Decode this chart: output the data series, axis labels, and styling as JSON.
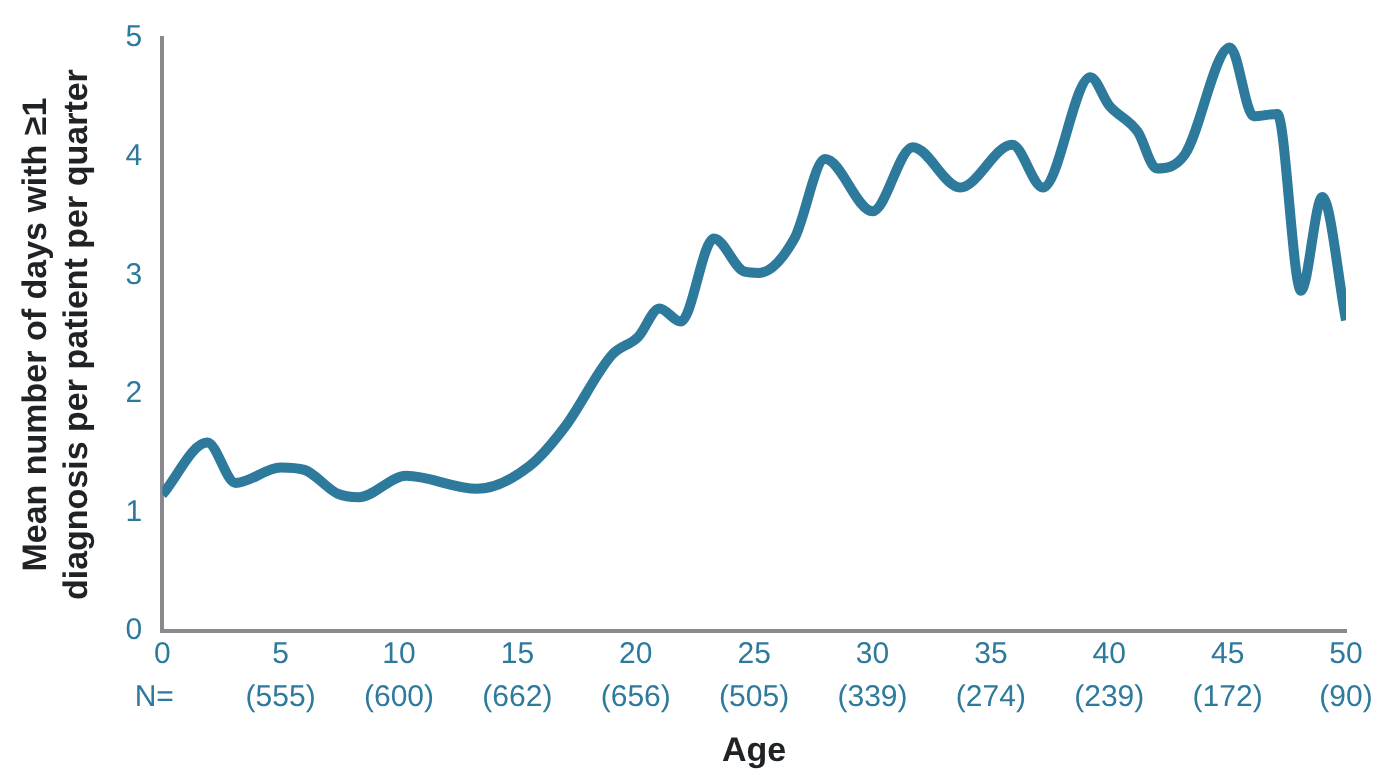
{
  "chart_data": {
    "type": "line",
    "xlabel": "Age",
    "ylabel": "Mean number of days with ≥1\ndiagnosis per patient per quarter",
    "grid": false,
    "legend": false,
    "marker": "none",
    "line_style": "solid",
    "xlim": [
      0,
      50
    ],
    "xticks": [
      0,
      5,
      10,
      15,
      20,
      25,
      30,
      35,
      40,
      45,
      50
    ],
    "annotations": [
      "N=",
      "(555)",
      "(600)",
      "(662)",
      "(656)",
      "(505)",
      "(339)",
      "(274)",
      "(239)",
      "(172)",
      "(90)"
    ],
    "ylim": [
      0,
      5
    ],
    "yticks": [
      0,
      1,
      2,
      3,
      4,
      5
    ],
    "series": [
      {
        "color": "#2e7a9c",
        "x": [
          0,
          1.9,
          3.1,
          5,
          6,
          7.4,
          8.3,
          10.3,
          13.3,
          15.5,
          17,
          19,
          20.1,
          21,
          21.9,
          23.3,
          24.6,
          25.2,
          26.7,
          28,
          30,
          31.7,
          33.7,
          35.9,
          37.2,
          39.2,
          40,
          41.2,
          42,
          43.2,
          45.1,
          46.1,
          47.1,
          48.1,
          49,
          50
        ],
        "values": [
          1.15,
          1.59,
          1.25,
          1.38,
          1.36,
          1.16,
          1.13,
          1.31,
          1.2,
          1.39,
          1.72,
          2.33,
          2.48,
          2.72,
          2.61,
          3.31,
          3.03,
          3.02,
          3.31,
          3.98,
          3.54,
          4.08,
          3.74,
          4.1,
          3.74,
          4.67,
          4.43,
          4.21,
          3.9,
          4.02,
          4.92,
          4.34,
          4.36,
          2.87,
          3.66,
          2.62
        ]
      }
    ]
  }
}
